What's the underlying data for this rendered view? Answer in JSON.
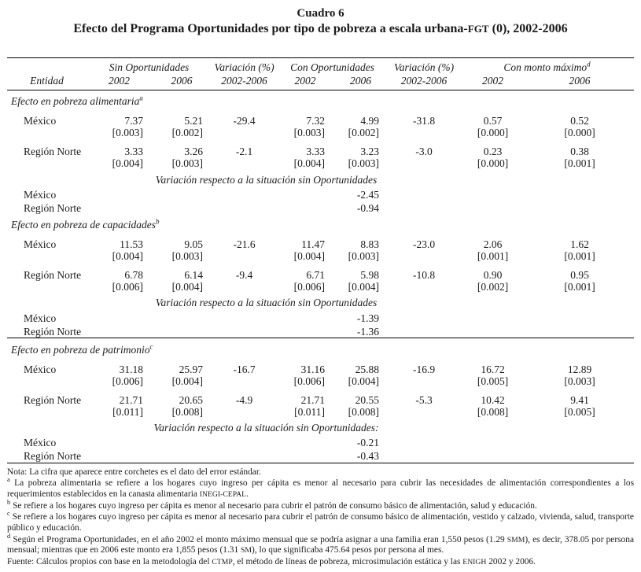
{
  "colors": {
    "background": "#ffffff",
    "text": "#1b1b1b",
    "rule": "#000000"
  },
  "smallcaps": [
    "INEGI-CEPAL",
    "CTMP",
    "ENIGH",
    "SMM",
    "SM",
    "FGT"
  ],
  "caption": {
    "label": "Cuadro 6",
    "title": "Efecto del Programa Oportunidades por tipo de pobreza a escala urbana-FGT (0), 2002-2006"
  },
  "table": {
    "group_headers": [
      {
        "label": "",
        "span": 1
      },
      {
        "label": "Sin Oportunidades",
        "span": 2
      },
      {
        "label": "Variación (%)",
        "span": 1
      },
      {
        "label": "Con Oportunidades",
        "span": 2
      },
      {
        "label": "Variación (%)",
        "span": 1
      },
      {
        "label": "Con monto máximo",
        "sup": "d",
        "span": 2
      }
    ],
    "col_headers": [
      "Entidad",
      "2002",
      "2006",
      "2002-2006",
      "2002",
      "2006",
      "2002-2006",
      "2002",
      "2006"
    ],
    "sections": [
      {
        "title": "Efecto en pobreza alimentaria",
        "sup": "a",
        "rule_above": false,
        "rows": [
          {
            "label": "México",
            "values": [
              "7.37",
              "5.21",
              "-29.4",
              "7.32",
              "4.99",
              "-31.8",
              "0.57",
              "0.52"
            ],
            "errors": [
              "[0.003]",
              "[0.002]",
              "",
              "[0.003]",
              "[0.002]",
              "",
              "[0.000]",
              "[0.000]"
            ]
          },
          {
            "label": "Región Norte",
            "values": [
              "3.33",
              "3.26",
              "-2.1",
              "3.33",
              "3.23",
              "-3.0",
              "0.23",
              "0.38"
            ],
            "errors": [
              "[0.004]",
              "[0.003]",
              "",
              "[0.004]",
              "[0.003]",
              "",
              "[0.000]",
              "[0.001]"
            ]
          }
        ],
        "variation_note": "Variación respecto a la situación sin Oportunidades",
        "variation_rows": [
          {
            "label": "México",
            "value": "-2.45"
          },
          {
            "label": "Región Norte",
            "value": "-0.94"
          }
        ]
      },
      {
        "title": "Efecto en pobreza de capacidades",
        "sup": "b",
        "rule_above": false,
        "rows": [
          {
            "label": "México",
            "values": [
              "11.53",
              "9.05",
              "-21.6",
              "11.47",
              "8.83",
              "-23.0",
              "2.06",
              "1.62"
            ],
            "errors": [
              "[0.004]",
              "[0.003]",
              "",
              "[0.004]",
              "[0.003]",
              "",
              "[0.001]",
              "[0.001]"
            ]
          },
          {
            "label": "Región Norte",
            "values": [
              "6.78",
              "6.14",
              "-9.4",
              "6.71",
              "5.98",
              "-10.8",
              "0.90",
              "0.95"
            ],
            "errors": [
              "[0.006]",
              "[0.004]",
              "",
              "[0.006]",
              "[0.004]",
              "",
              "[0.002]",
              "[0.001]"
            ]
          }
        ],
        "variation_note": "Variación respecto a la situación sin Oportunidades",
        "variation_rows": [
          {
            "label": "México",
            "value": "-1.39"
          },
          {
            "label": "Región Norte",
            "value": "-1.36"
          }
        ]
      },
      {
        "title": "Efecto en pobreza de patrimonio",
        "sup": "c",
        "rule_above": true,
        "rows": [
          {
            "label": "México",
            "values": [
              "31.18",
              "25.97",
              "-16.7",
              "31.16",
              "25.88",
              "-16.9",
              "16.72",
              "12.89"
            ],
            "errors": [
              "[0.006]",
              "[0.004]",
              "",
              "[0.006]",
              "[0.004]",
              "",
              "[0.005]",
              "[0.003]"
            ]
          },
          {
            "label": "Región Norte",
            "values": [
              "21.71",
              "20.65",
              "-4.9",
              "21.71",
              "20.55",
              "-5.3",
              "10.42",
              "9.41"
            ],
            "errors": [
              "[0.011]",
              "[0.008]",
              "",
              "[0.011]",
              "[0.008]",
              "",
              "[0.008]",
              "[0.005]"
            ]
          }
        ],
        "variation_note": "Variación respecto a la situación sin Oportunidades:",
        "variation_rows": [
          {
            "label": "México",
            "value": "-0.21"
          },
          {
            "label": "Región Norte",
            "value": "-0.43"
          }
        ]
      }
    ]
  },
  "notes": [
    {
      "marker": "",
      "text": "Nota: La cifra que aparece entre corchetes es el dato del error estándar."
    },
    {
      "marker": "a",
      "text": "La pobreza alimentaria se refiere a los hogares cuyo ingreso per cápita es menor al necesario para cubrir las necesidades de alimentación correspondientes a los requerimientos establecidos en la canasta alimentaria INEGI-CEPAL."
    },
    {
      "marker": "b",
      "text": "Se refiere a los hogares cuyo ingreso per cápita es menor al necesario para cubrir el patrón de consumo básico de alimentación, salud y educación."
    },
    {
      "marker": "c",
      "text": "Se refiere a los hogares cuyo ingreso per cápita es menor al necesario para cubrir el patrón de consumo básico de alimentación, vestido y calzado, vivienda, salud, transporte público y educación."
    },
    {
      "marker": "d",
      "text": "Según el Programa Oportunidades, en el año 2002 el monto máximo mensual que se podría asignar a una familia eran 1,550 pesos (1.29 SMM), es decir, 378.05 por persona mensual; mientras que en 2006 este monto era 1,855 pesos (1.31 SM), lo que significaba 475.64 pesos por persona al mes."
    },
    {
      "marker": "",
      "text": "Fuente: Cálculos propios con base en la metodología del CTMP, el método de líneas de pobreza, microsimulación estática y las ENIGH 2002 y 2006."
    }
  ]
}
